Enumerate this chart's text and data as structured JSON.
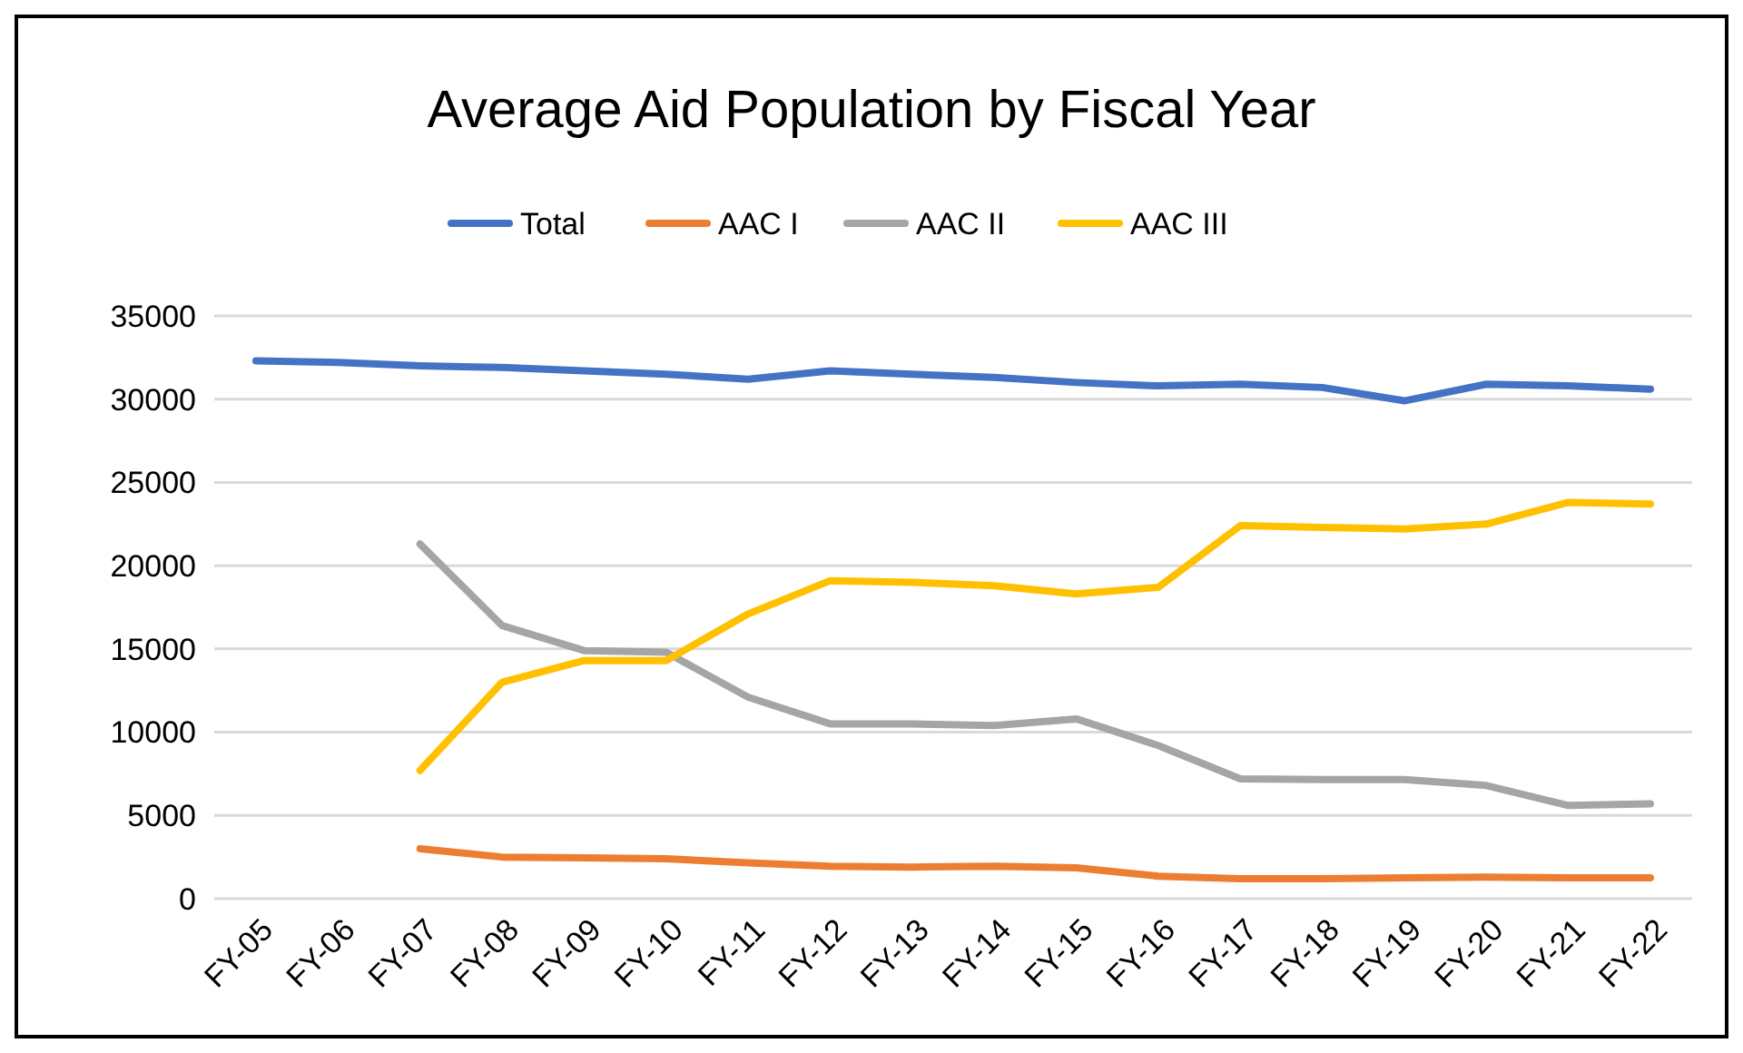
{
  "chart_data": {
    "type": "line",
    "title": "Average Aid Population by Fiscal Year",
    "categories": [
      "FY-05",
      "FY-06",
      "FY-07",
      "FY-08",
      "FY-09",
      "FY-10",
      "FY-11",
      "FY-12",
      "FY-13",
      "FY-14",
      "FY-15",
      "FY-16",
      "FY-17",
      "FY-18",
      "FY-19",
      "FY-20",
      "FY-21",
      "FY-22"
    ],
    "series": [
      {
        "name": "Total",
        "color": "#4472c4",
        "values": [
          32300,
          32200,
          32000,
          31900,
          31700,
          31500,
          31200,
          31700,
          31500,
          31300,
          31000,
          30800,
          30900,
          30700,
          29900,
          30900,
          30800,
          30600
        ]
      },
      {
        "name": "AAC I",
        "color": "#ed7d31",
        "values": [
          null,
          null,
          3000,
          2500,
          2450,
          2400,
          2150,
          1950,
          1900,
          1950,
          1850,
          1350,
          1200,
          1200,
          1250,
          1300,
          1250,
          1250
        ]
      },
      {
        "name": "AAC II",
        "color": "#a5a5a5",
        "values": [
          null,
          null,
          21300,
          16400,
          14900,
          14800,
          12100,
          10500,
          10500,
          10400,
          10800,
          9200,
          7200,
          7150,
          7150,
          6800,
          5600,
          5700
        ]
      },
      {
        "name": "AAC III",
        "color": "#ffc000",
        "values": [
          null,
          null,
          7700,
          13000,
          14300,
          14300,
          17100,
          19100,
          19000,
          18800,
          18300,
          18700,
          22400,
          22300,
          22200,
          22500,
          23800,
          23700
        ]
      }
    ],
    "ylim": [
      0,
      35000
    ],
    "yticks": [
      0,
      5000,
      10000,
      15000,
      20000,
      25000,
      30000,
      35000
    ],
    "grid": "y",
    "legend": "top",
    "marker": "none",
    "line_style": "solid"
  }
}
